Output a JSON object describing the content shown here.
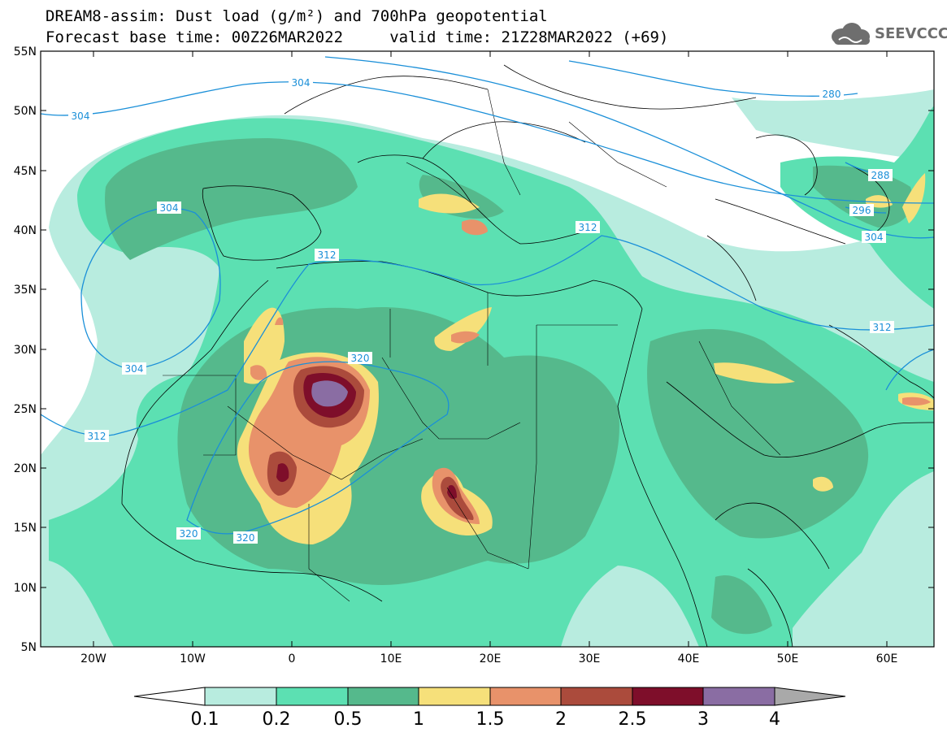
{
  "header": {
    "title_line1": "DREAM8-assim: Dust load (g/m²) and 700hPa geopotential",
    "title_line2": "Forecast base time: 00Z26MAR2022     valid time: 21Z28MAR2022 (+69)"
  },
  "logo": {
    "text": "SEEVCCC",
    "icon": "cloud-logo-icon",
    "color": "#6e6e6e"
  },
  "map": {
    "lon_range": [
      -25,
      65
    ],
    "lat_range": [
      5,
      55
    ],
    "lat_ticks": [
      "5N",
      "10N",
      "15N",
      "20N",
      "25N",
      "30N",
      "35N",
      "40N",
      "45N",
      "50N",
      "55N"
    ],
    "lon_ticks": [
      "20W",
      "10W",
      "0",
      "10E",
      "20E",
      "30E",
      "40E",
      "50E",
      "60E"
    ],
    "contour_labels": [
      "304",
      "304",
      "280",
      "288",
      "296",
      "304",
      "304",
      "312",
      "312",
      "312",
      "320",
      "312",
      "304",
      "320",
      "320"
    ],
    "contour_color": "#1a8fd8",
    "grid": false
  },
  "colorbar": {
    "labels": [
      "0.1",
      "0.2",
      "0.5",
      "1",
      "1.5",
      "2",
      "2.5",
      "3",
      "4"
    ],
    "colors": [
      "#ffffff",
      "#b8ecdf",
      "#5ce0b2",
      "#55b98c",
      "#f6e07a",
      "#e8926a",
      "#ab4b3c",
      "#7e0e2a",
      "#8a6da3",
      "#a9a9a9"
    ]
  }
}
